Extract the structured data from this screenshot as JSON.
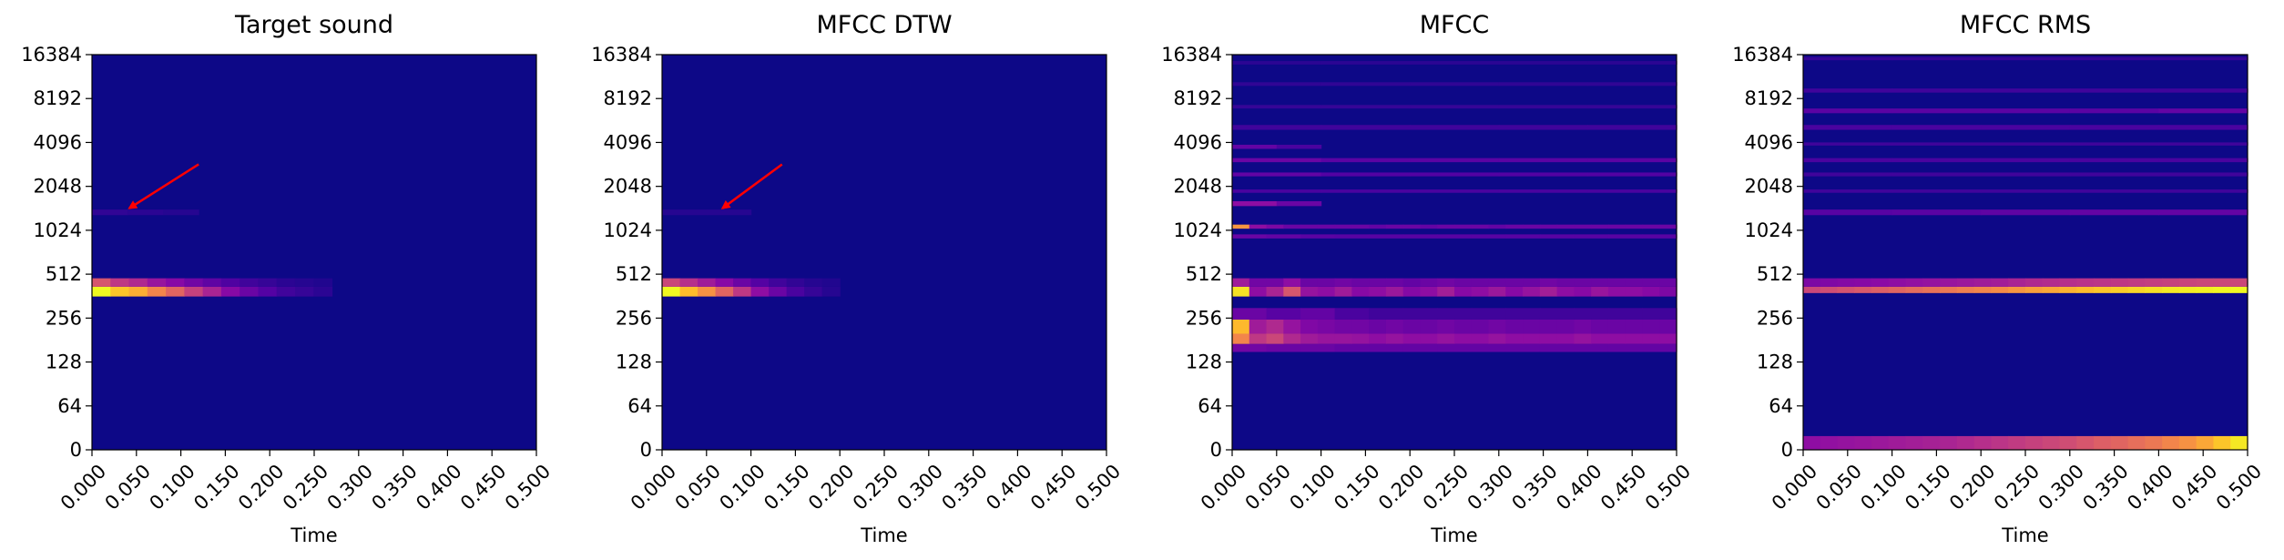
{
  "colors": {
    "colormap": "plasma",
    "background": "#0d0887",
    "arrow": "#ff0000"
  },
  "chart_data": [
    {
      "type": "heatmap",
      "title": "Target sound",
      "xlabel": "Time",
      "ylabel": "",
      "xlim": [
        0,
        0.5
      ],
      "x_ticks": [
        "0.000",
        "0.050",
        "0.100",
        "0.150",
        "0.200",
        "0.250",
        "0.300",
        "0.350",
        "0.400",
        "0.450",
        "0.500"
      ],
      "y_ticks": [
        "0",
        "64",
        "128",
        "256",
        "512",
        "1024",
        "2048",
        "4096",
        "8192",
        "16384"
      ],
      "grid": false,
      "bands": [
        {
          "freq_low": 360,
          "freq_high": 420,
          "t_start": 0.0,
          "t_end": 0.27,
          "intensity": [
            1.0,
            0.88,
            0.82,
            0.7,
            0.6,
            0.48,
            0.38,
            0.28,
            0.2,
            0.14,
            0.1,
            0.08,
            0.06
          ]
        },
        {
          "freq_low": 420,
          "freq_high": 480,
          "t_start": 0.0,
          "t_end": 0.27,
          "intensity": [
            0.55,
            0.45,
            0.4,
            0.33,
            0.28,
            0.22,
            0.17,
            0.13,
            0.1,
            0.08,
            0.06,
            0.05,
            0.04
          ]
        },
        {
          "freq_low": 1300,
          "freq_high": 1420,
          "t_start": 0.0,
          "t_end": 0.12,
          "intensity": [
            0.07,
            0.06,
            0.05
          ]
        }
      ],
      "annotations": [
        {
          "type": "arrow",
          "from": [
            0.12,
            2900
          ],
          "to": [
            0.042,
            1450
          ]
        }
      ]
    },
    {
      "type": "heatmap",
      "title": "MFCC DTW",
      "xlabel": "Time",
      "ylabel": "",
      "xlim": [
        0,
        0.5
      ],
      "x_ticks": [
        "0.000",
        "0.050",
        "0.100",
        "0.150",
        "0.200",
        "0.250",
        "0.300",
        "0.350",
        "0.400",
        "0.450",
        "0.500"
      ],
      "y_ticks": [
        "0",
        "64",
        "128",
        "256",
        "512",
        "1024",
        "2048",
        "4096",
        "8192",
        "16384"
      ],
      "grid": false,
      "bands": [
        {
          "freq_low": 360,
          "freq_high": 420,
          "t_start": 0.0,
          "t_end": 0.2,
          "intensity": [
            1.0,
            0.86,
            0.74,
            0.6,
            0.45,
            0.3,
            0.2,
            0.12,
            0.08,
            0.05
          ]
        },
        {
          "freq_low": 420,
          "freq_high": 480,
          "t_start": 0.0,
          "t_end": 0.2,
          "intensity": [
            0.5,
            0.42,
            0.35,
            0.28,
            0.2,
            0.14,
            0.1,
            0.07,
            0.05,
            0.04
          ]
        },
        {
          "freq_low": 1300,
          "freq_high": 1420,
          "t_start": 0.0,
          "t_end": 0.1,
          "intensity": [
            0.05,
            0.05
          ]
        }
      ],
      "annotations": [
        {
          "type": "arrow",
          "from": [
            0.135,
            2900
          ],
          "to": [
            0.068,
            1450
          ]
        }
      ]
    },
    {
      "type": "heatmap",
      "title": "MFCC",
      "xlabel": "Time",
      "ylabel": "",
      "xlim": [
        0,
        0.5
      ],
      "x_ticks": [
        "0.000",
        "0.050",
        "0.100",
        "0.150",
        "0.200",
        "0.250",
        "0.300",
        "0.350",
        "0.400",
        "0.450",
        "0.500"
      ],
      "y_ticks": [
        "0",
        "64",
        "128",
        "256",
        "512",
        "1024",
        "2048",
        "4096",
        "8192",
        "16384"
      ],
      "grid": false,
      "bands": [
        {
          "freq_low": 360,
          "freq_high": 420,
          "t_start": 0.0,
          "t_end": 0.5,
          "intensity": [
            0.95,
            0.3,
            0.38,
            0.55,
            0.32,
            0.3,
            0.35,
            0.28,
            0.3,
            0.34,
            0.27,
            0.3,
            0.36,
            0.28,
            0.3,
            0.34,
            0.28,
            0.32,
            0.36,
            0.3,
            0.28,
            0.33,
            0.3,
            0.3,
            0.28,
            0.25
          ]
        },
        {
          "freq_low": 420,
          "freq_high": 480,
          "t_start": 0.0,
          "t_end": 0.5,
          "intensity": [
            0.35,
            0.22,
            0.22,
            0.3,
            0.2,
            0.2,
            0.22,
            0.2,
            0.2,
            0.2,
            0.18,
            0.2,
            0.22,
            0.2,
            0.2,
            0.2,
            0.2,
            0.2,
            0.22,
            0.2,
            0.2,
            0.2,
            0.2,
            0.2,
            0.2,
            0.2
          ]
        },
        {
          "freq_low": 250,
          "freq_high": 300,
          "t_start": 0.0,
          "t_end": 0.5,
          "intensity": [
            0.2,
            0.15,
            0.18,
            0.12,
            0.1,
            0.1,
            0.1,
            0.1,
            0.1,
            0.1,
            0.1,
            0.1,
            0.1
          ]
        },
        {
          "freq_low": 200,
          "freq_high": 250,
          "t_start": 0.0,
          "t_end": 0.5,
          "intensity": [
            0.85,
            0.35,
            0.4,
            0.32,
            0.26,
            0.24,
            0.22,
            0.22,
            0.2,
            0.22,
            0.2,
            0.2,
            0.22,
            0.2,
            0.2,
            0.22,
            0.2,
            0.2,
            0.2,
            0.2,
            0.22,
            0.2,
            0.2,
            0.2,
            0.2,
            0.2
          ]
        },
        {
          "freq_low": 170,
          "freq_high": 200,
          "t_start": 0.0,
          "t_end": 0.5,
          "intensity": [
            0.7,
            0.45,
            0.5,
            0.4,
            0.35,
            0.33,
            0.33,
            0.32,
            0.3,
            0.32,
            0.3,
            0.3,
            0.32,
            0.3,
            0.3,
            0.32,
            0.3,
            0.3,
            0.3,
            0.3,
            0.32,
            0.3,
            0.3,
            0.3,
            0.3,
            0.3
          ]
        },
        {
          "freq_low": 150,
          "freq_high": 170,
          "t_start": 0.0,
          "t_end": 0.5,
          "intensity": [
            0.22,
            0.2,
            0.2,
            0.18,
            0.18,
            0.18,
            0.18,
            0.18,
            0.18,
            0.18,
            0.18,
            0.18,
            0.18
          ]
        },
        {
          "freq_low": 1050,
          "freq_high": 1120,
          "t_start": 0.0,
          "t_end": 0.5,
          "intensity": [
            0.75,
            0.3,
            0.25,
            0.2,
            0.2,
            0.2,
            0.2,
            0.2,
            0.18,
            0.2,
            0.2,
            0.18,
            0.2,
            0.2,
            0.2,
            0.18,
            0.2,
            0.2,
            0.2,
            0.2,
            0.2,
            0.2,
            0.2,
            0.2,
            0.2,
            0.2
          ]
        },
        {
          "freq_low": 900,
          "freq_high": 960,
          "t_start": 0.0,
          "t_end": 0.5,
          "intensity": [
            0.2,
            0.18,
            0.16,
            0.15,
            0.15,
            0.15,
            0.15,
            0.15,
            0.15,
            0.15,
            0.15,
            0.15,
            0.15
          ]
        },
        {
          "freq_low": 1500,
          "freq_high": 1620,
          "t_start": 0.0,
          "t_end": 0.1,
          "intensity": [
            0.3,
            0.2
          ]
        },
        {
          "freq_low": 1850,
          "freq_high": 1950,
          "t_start": 0.0,
          "t_end": 0.5,
          "intensity": [
            0.12,
            0.12,
            0.12,
            0.12,
            0.12
          ]
        },
        {
          "freq_low": 2400,
          "freq_high": 2550,
          "t_start": 0.0,
          "t_end": 0.5,
          "intensity": [
            0.18,
            0.14,
            0.14,
            0.14,
            0.14
          ]
        },
        {
          "freq_low": 3000,
          "freq_high": 3200,
          "t_start": 0.0,
          "t_end": 0.5,
          "intensity": [
            0.2,
            0.16,
            0.16,
            0.16,
            0.16
          ]
        },
        {
          "freq_low": 3700,
          "freq_high": 3950,
          "t_start": 0.0,
          "t_end": 0.1,
          "intensity": [
            0.18,
            0.12
          ]
        },
        {
          "freq_low": 5000,
          "freq_high": 5400,
          "t_start": 0.0,
          "t_end": 0.5,
          "intensity": [
            0.1,
            0.1,
            0.1,
            0.1,
            0.1
          ]
        },
        {
          "freq_low": 7000,
          "freq_high": 7400,
          "t_start": 0.0,
          "t_end": 0.5,
          "intensity": [
            0.08,
            0.08,
            0.08,
            0.08,
            0.08
          ]
        },
        {
          "freq_low": 10000,
          "freq_high": 10600,
          "t_start": 0.0,
          "t_end": 0.5,
          "intensity": [
            0.07,
            0.07,
            0.07,
            0.07,
            0.07
          ]
        },
        {
          "freq_low": 14000,
          "freq_high": 14800,
          "t_start": 0.0,
          "t_end": 0.5,
          "intensity": [
            0.06,
            0.06,
            0.06,
            0.06,
            0.06
          ]
        }
      ]
    },
    {
      "type": "heatmap",
      "title": "MFCC RMS",
      "xlabel": "Time",
      "ylabel": "",
      "xlim": [
        0,
        0.5
      ],
      "x_ticks": [
        "0.000",
        "0.050",
        "0.100",
        "0.150",
        "0.200",
        "0.250",
        "0.300",
        "0.350",
        "0.400",
        "0.450",
        "0.500"
      ],
      "y_ticks": [
        "0",
        "64",
        "128",
        "256",
        "512",
        "1024",
        "2048",
        "4096",
        "8192",
        "16384"
      ],
      "grid": false,
      "bands": [
        {
          "freq_low": 380,
          "freq_high": 420,
          "t_start": 0.0,
          "t_end": 0.5,
          "intensity": [
            0.5,
            0.52,
            0.54,
            0.56,
            0.58,
            0.6,
            0.62,
            0.64,
            0.66,
            0.68,
            0.7,
            0.72,
            0.75,
            0.78,
            0.8,
            0.83,
            0.86,
            0.88,
            0.9,
            0.92,
            0.94,
            0.96,
            0.97,
            0.98,
            0.99,
            1.0
          ]
        },
        {
          "freq_low": 420,
          "freq_high": 480,
          "t_start": 0.0,
          "t_end": 0.5,
          "intensity": [
            0.25,
            0.26,
            0.27,
            0.28,
            0.29,
            0.3,
            0.31,
            0.32,
            0.33,
            0.34,
            0.35,
            0.36,
            0.38,
            0.4,
            0.41,
            0.42,
            0.43,
            0.44,
            0.45,
            0.46,
            0.47,
            0.48,
            0.49,
            0.5,
            0.5,
            0.5
          ]
        },
        {
          "freq_low": 0,
          "freq_high": 20,
          "t_start": 0.0,
          "t_end": 0.5,
          "intensity": [
            0.3,
            0.31,
            0.32,
            0.33,
            0.34,
            0.35,
            0.36,
            0.37,
            0.38,
            0.4,
            0.42,
            0.44,
            0.46,
            0.48,
            0.5,
            0.52,
            0.55,
            0.58,
            0.6,
            0.63,
            0.66,
            0.7,
            0.74,
            0.8,
            0.88,
            0.96
          ]
        },
        {
          "freq_low": 1300,
          "freq_high": 1420,
          "t_start": 0.0,
          "t_end": 0.5,
          "intensity": [
            0.15,
            0.16,
            0.17,
            0.18,
            0.18
          ]
        },
        {
          "freq_low": 1850,
          "freq_high": 1950,
          "t_start": 0.0,
          "t_end": 0.5,
          "intensity": [
            0.1,
            0.1,
            0.1,
            0.1,
            0.1
          ]
        },
        {
          "freq_low": 2400,
          "freq_high": 2550,
          "t_start": 0.0,
          "t_end": 0.5,
          "intensity": [
            0.1,
            0.1,
            0.1,
            0.1,
            0.1
          ]
        },
        {
          "freq_low": 3000,
          "freq_high": 3200,
          "t_start": 0.0,
          "t_end": 0.5,
          "intensity": [
            0.12,
            0.12,
            0.12,
            0.12,
            0.12
          ]
        },
        {
          "freq_low": 3900,
          "freq_high": 4100,
          "t_start": 0.0,
          "t_end": 0.5,
          "intensity": [
            0.1,
            0.1,
            0.1,
            0.1,
            0.1
          ]
        },
        {
          "freq_low": 5000,
          "freq_high": 5400,
          "t_start": 0.0,
          "t_end": 0.5,
          "intensity": [
            0.12,
            0.12,
            0.12,
            0.12,
            0.12
          ]
        },
        {
          "freq_low": 6500,
          "freq_high": 7000,
          "t_start": 0.0,
          "t_end": 0.5,
          "intensity": [
            0.16,
            0.16,
            0.16,
            0.16,
            0.18
          ]
        },
        {
          "freq_low": 9000,
          "freq_high": 9600,
          "t_start": 0.0,
          "t_end": 0.5,
          "intensity": [
            0.1,
            0.1,
            0.1,
            0.1,
            0.1
          ]
        },
        {
          "freq_low": 15000,
          "freq_high": 15800,
          "t_start": 0.0,
          "t_end": 0.5,
          "intensity": [
            0.08,
            0.08,
            0.08,
            0.08,
            0.08
          ]
        }
      ]
    }
  ]
}
